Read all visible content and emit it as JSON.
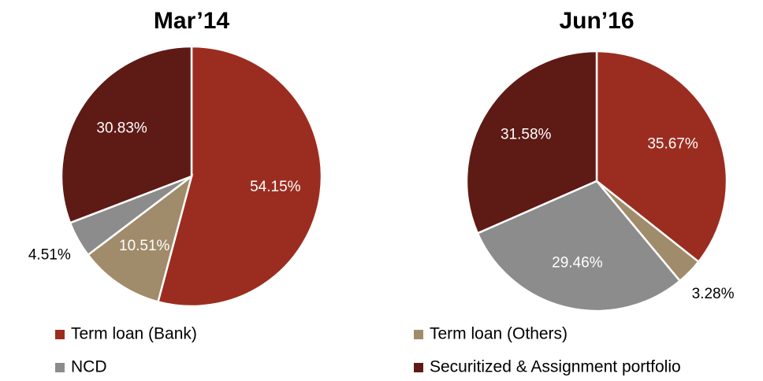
{
  "chart_data": [
    {
      "type": "pie",
      "title": "Mar’14",
      "categories": [
        "Term loan (Bank)",
        "Term loan (Others)",
        "NCD",
        "Securitized & Assignment portfolio"
      ],
      "values": [
        54.15,
        10.51,
        4.51,
        30.83
      ],
      "value_labels": [
        "54.15%",
        "10.51%",
        "4.51%",
        "30.83%"
      ],
      "colors": [
        "#9b2d20",
        "#a08b6a",
        "#8c8c8c",
        "#5e1a14"
      ]
    },
    {
      "type": "pie",
      "title": "Jun’16",
      "categories": [
        "Term loan (Bank)",
        "Term loan (Others)",
        "NCD",
        "Securitized & Assignment portfolio"
      ],
      "values": [
        35.67,
        3.28,
        29.46,
        31.58
      ],
      "value_labels": [
        "35.67%",
        "3.28%",
        "29.46%",
        "31.58%"
      ],
      "colors": [
        "#9b2d20",
        "#a08b6a",
        "#8c8c8c",
        "#5e1a14"
      ]
    }
  ]
}
